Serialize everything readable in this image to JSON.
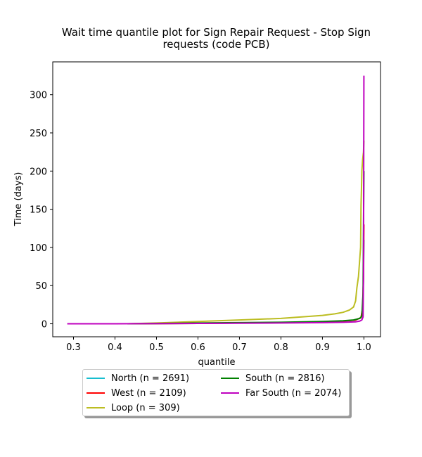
{
  "chart_data": {
    "type": "line",
    "title": "Wait time quantile plot for Sign Repair Request - Stop Sign\nrequests (code PCB)",
    "xlabel": "quantile",
    "ylabel": "Time (days)",
    "xlim": [
      0.25,
      1.04
    ],
    "ylim": [
      -17,
      343
    ],
    "xticks": [
      "0.3",
      "0.4",
      "0.5",
      "0.6",
      "0.7",
      "0.8",
      "0.9",
      "1.0"
    ],
    "xtick_values": [
      0.3,
      0.4,
      0.5,
      0.6,
      0.7,
      0.8,
      0.9,
      1.0
    ],
    "yticks": [
      "0",
      "50",
      "100",
      "150",
      "200",
      "250",
      "300"
    ],
    "ytick_values": [
      0,
      50,
      100,
      150,
      200,
      250,
      300
    ],
    "grid": false,
    "legend_position": "bottom-center",
    "series": [
      {
        "name": "North (n = 2691)",
        "color": "#17becf",
        "x": [
          0.43,
          0.6,
          0.8,
          0.9,
          0.95,
          0.98,
          0.993,
          0.997,
          0.999,
          1.0
        ],
        "y": [
          0,
          0.5,
          1.5,
          2.5,
          3.5,
          5,
          8,
          20,
          60,
          110
        ]
      },
      {
        "name": "West (n = 2109)",
        "color": "#ff0000",
        "x": [
          0.43,
          0.6,
          0.8,
          0.9,
          0.95,
          0.98,
          0.993,
          0.997,
          0.999,
          1.0
        ],
        "y": [
          0,
          0.5,
          1.5,
          2.5,
          3.5,
          5,
          8,
          20,
          60,
          130
        ]
      },
      {
        "name": "Loop (n = 309)",
        "color": "#bcbd22",
        "x": [
          0.43,
          0.5,
          0.6,
          0.7,
          0.8,
          0.85,
          0.9,
          0.93,
          0.95,
          0.965,
          0.975,
          0.98,
          0.983,
          0.987,
          0.99,
          0.992,
          0.993,
          0.994,
          0.995,
          0.997,
          0.999,
          1.0
        ],
        "y": [
          0,
          1,
          3,
          5,
          7,
          9,
          11,
          13,
          15,
          18,
          22,
          30,
          47,
          62,
          85,
          100,
          155,
          175,
          200,
          215,
          225,
          240
        ]
      },
      {
        "name": "South (n = 2816)",
        "color": "#008000",
        "x": [
          0.43,
          0.6,
          0.8,
          0.9,
          0.95,
          0.975,
          0.99,
          0.995,
          0.998,
          1.0
        ],
        "y": [
          0,
          1,
          2,
          3,
          4,
          5,
          7,
          10,
          40,
          200
        ]
      },
      {
        "name": "Far South (n = 2074)",
        "color": "#bf00bf",
        "x": [
          0.285,
          0.4,
          0.6,
          0.8,
          0.9,
          0.95,
          0.98,
          0.99,
          0.995,
          0.998,
          0.999,
          1.0
        ],
        "y": [
          0,
          0,
          0.5,
          1,
          1.5,
          2,
          2.5,
          3.5,
          5,
          9,
          60,
          325
        ]
      }
    ]
  }
}
